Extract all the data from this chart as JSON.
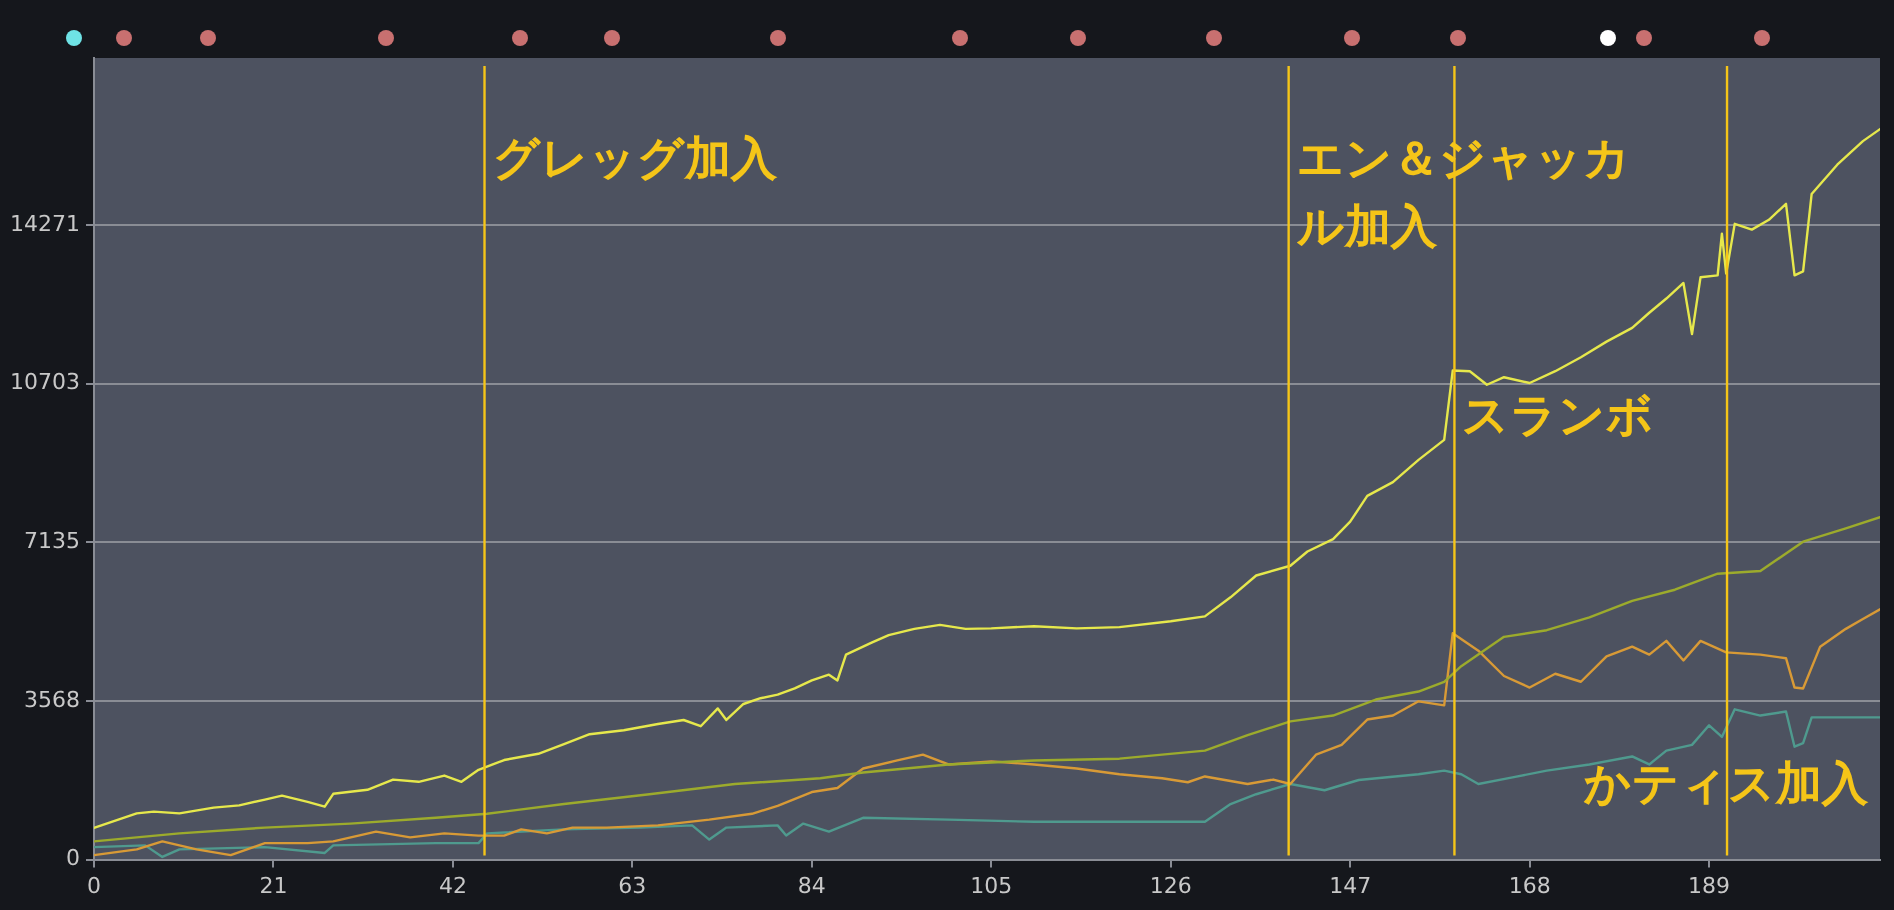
{
  "chart_data": {
    "type": "line",
    "xlim": [
      0,
      209
    ],
    "xticks": [
      0,
      21,
      42,
      63,
      84,
      105,
      126,
      147,
      168,
      189
    ],
    "ylim": [
      0,
      18030
    ],
    "yticks": [
      0,
      3568,
      7135,
      10703,
      14271
    ],
    "grid": "y",
    "series": [
      {
        "color": "#e6e84c",
        "x": [
          0,
          5,
          7,
          10,
          14,
          17,
          20,
          22,
          25,
          27,
          28,
          32,
          35,
          38,
          41,
          43,
          45,
          48,
          52,
          55,
          58,
          62,
          66,
          69,
          71,
          73,
          74,
          76,
          78,
          80,
          82,
          84,
          86,
          87,
          88,
          91,
          93,
          96,
          99,
          102,
          105,
          110,
          115,
          120,
          126,
          130,
          133,
          136,
          140,
          142,
          145,
          147,
          149,
          152,
          155,
          158,
          159,
          161,
          163,
          165,
          168,
          171,
          174,
          177,
          180,
          182,
          184,
          186,
          187,
          188,
          190,
          190.5,
          191,
          192,
          194,
          196,
          198,
          199,
          200,
          201,
          204,
          207,
          209
        ],
        "values": [
          714,
          1040,
          1080,
          1040,
          1170,
          1220,
          1350,
          1440,
          1300,
          1190,
          1480,
          1570,
          1800,
          1750,
          1890,
          1750,
          2020,
          2240,
          2380,
          2600,
          2820,
          2910,
          3050,
          3140,
          3000,
          3400,
          3140,
          3500,
          3630,
          3710,
          3850,
          4030,
          4160,
          4030,
          4610,
          4880,
          5050,
          5190,
          5280,
          5190,
          5200,
          5250,
          5200,
          5230,
          5360,
          5470,
          5900,
          6390,
          6610,
          6930,
          7210,
          7600,
          8180,
          8490,
          8990,
          9440,
          11000,
          10985,
          10680,
          10850,
          10720,
          10985,
          11300,
          11650,
          11960,
          12300,
          12620,
          12970,
          11820,
          13100,
          13140,
          14080,
          13180,
          14300,
          14170,
          14390,
          14750,
          13140,
          13230,
          14970,
          15630,
          16160,
          16430
        ]
      },
      {
        "color": "#9cab2c",
        "x": [
          0,
          10,
          20,
          30,
          40,
          46,
          55,
          65,
          75,
          85,
          90,
          100,
          110,
          120,
          130,
          135,
          140,
          145,
          150,
          155,
          158,
          160,
          165,
          170,
          175,
          180,
          185,
          190,
          195,
          200,
          205,
          209
        ],
        "values": [
          410,
          590,
          720,
          810,
          940,
          1030,
          1250,
          1470,
          1700,
          1830,
          1960,
          2140,
          2230,
          2270,
          2450,
          2800,
          3110,
          3240,
          3600,
          3780,
          4000,
          4350,
          5010,
          5160,
          5450,
          5820,
          6070,
          6430,
          6490,
          7150,
          7450,
          7700
        ]
      },
      {
        "color": "#d89a36",
        "x": [
          0,
          5,
          8,
          12,
          16,
          20,
          25,
          28,
          33,
          37,
          41,
          45,
          48,
          50,
          53,
          56,
          60,
          66,
          72,
          77,
          80,
          84,
          87,
          90,
          94,
          97,
          100,
          105,
          110,
          115,
          120,
          125,
          128,
          130,
          135,
          138,
          140,
          143,
          146,
          149,
          152,
          155,
          158,
          159,
          162,
          165,
          168,
          171,
          174,
          177,
          180,
          182,
          184,
          186,
          188,
          191,
          195,
          198,
          199,
          200,
          202,
          205,
          207,
          209
        ],
        "values": [
          100,
          230,
          410,
          230,
          100,
          370,
          370,
          410,
          630,
          500,
          590,
          540,
          540,
          680,
          590,
          720,
          720,
          770,
          900,
          1030,
          1210,
          1520,
          1610,
          2050,
          2230,
          2360,
          2140,
          2210,
          2140,
          2050,
          1920,
          1830,
          1740,
          1870,
          1700,
          1800,
          1700,
          2360,
          2580,
          3150,
          3240,
          3560,
          3470,
          5090,
          4700,
          4130,
          3870,
          4180,
          4000,
          4570,
          4790,
          4610,
          4920,
          4480,
          4920,
          4660,
          4610,
          4530,
          3870,
          3850,
          4790,
          5190,
          5410,
          5630
        ]
      },
      {
        "color": "#4f9a8e",
        "x": [
          0,
          6,
          8,
          10,
          20,
          27,
          28,
          40,
          45,
          46,
          55,
          64,
          70,
          72,
          74,
          80,
          81,
          83,
          86,
          90,
          100,
          110,
          120,
          130,
          133,
          136,
          140,
          144,
          148,
          155,
          158,
          160,
          162,
          166,
          170,
          175,
          180,
          182,
          184,
          187,
          189,
          190.5,
          192,
          195,
          198,
          199,
          200,
          201,
          209
        ],
        "values": [
          280,
          320,
          60,
          230,
          280,
          150,
          320,
          370,
          370,
          590,
          680,
          720,
          770,
          450,
          720,
          770,
          540,
          810,
          630,
          940,
          900,
          850,
          850,
          850,
          1250,
          1470,
          1700,
          1560,
          1790,
          1920,
          2000,
          1920,
          1700,
          1850,
          2000,
          2140,
          2320,
          2140,
          2450,
          2580,
          3020,
          2760,
          3380,
          3240,
          3330,
          2540,
          2620,
          3200,
          3200
        ]
      }
    ],
    "ref_lines": [
      {
        "axis": "x",
        "value": 45.7,
        "label": "グレッグ加入",
        "color": "#f5c518"
      },
      {
        "axis": "x",
        "value": 139.8,
        "label": "エン＆ジャッカル加入",
        "color": "#f5c518"
      },
      {
        "axis": "x",
        "value": 159.2,
        "label": "スランボ",
        "color": "#f5c518"
      },
      {
        "axis": "x",
        "value": 191.1,
        "label": "かティス加入",
        "color": "#f5c518"
      }
    ]
  }
}
